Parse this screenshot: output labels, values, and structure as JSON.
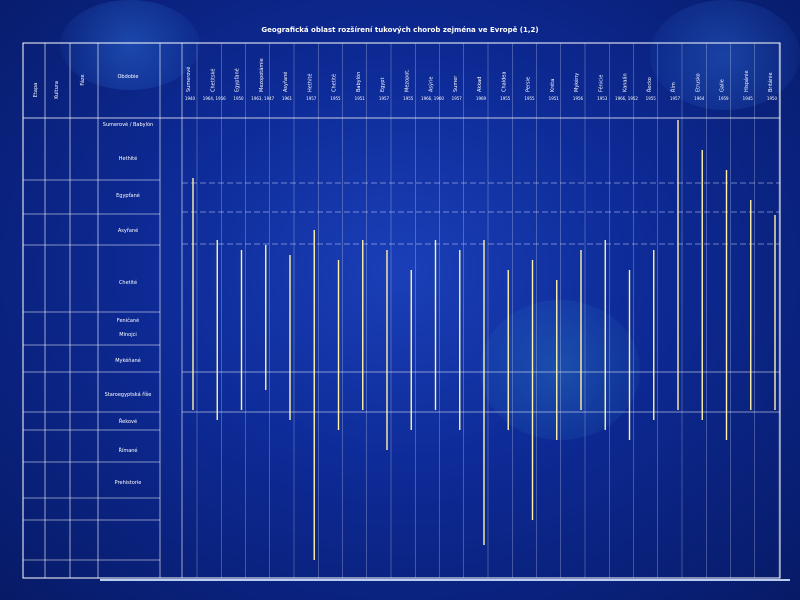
{
  "colors": {
    "background": "#0d2a95",
    "line": "#ffffff",
    "bar": "#fff3a8",
    "dashed": "#cfd8ff"
  },
  "chart_data": {
    "type": "table",
    "title": "Geografická oblast rozšírení tukových chorob zejména ve Evropě (1,2)",
    "header": [
      "Etapa",
      "Kultura",
      "Fáze",
      "Obdobie"
    ],
    "stratigraphy": [
      {
        "label": "Sumerové / Babylón"
      },
      {
        "label": "Hethité"
      },
      {
        "label": "Egypťané"
      },
      {
        "label": "Asyřané"
      },
      {
        "label": "Chetité"
      },
      {
        "label": "Feničané"
      },
      {
        "label": "Minojci"
      },
      {
        "label": "Mykéňané"
      },
      {
        "label": "Staroegyptská říše"
      },
      {
        "label": "Řekové"
      },
      {
        "label": "Římané"
      },
      {
        "label": "Prehistorie"
      }
    ],
    "columns": [
      {
        "label": "Sumerové",
        "year": "1940"
      },
      {
        "label": "Chetitské",
        "year": "1964, 1956"
      },
      {
        "label": "Egypťané",
        "year": "1950"
      },
      {
        "label": "Mezopotámie",
        "year": "1963, 1947"
      },
      {
        "label": "Asyřané",
        "year": "1961"
      },
      {
        "label": "Hethité",
        "year": "1957"
      },
      {
        "label": "Chetité",
        "year": "1955"
      },
      {
        "label": "Babylón",
        "year": "1951"
      },
      {
        "label": "Egypt",
        "year": "1957"
      },
      {
        "label": "Mezopot.",
        "year": "1955"
      },
      {
        "label": "Asýrie",
        "year": "1966, 1960"
      },
      {
        "label": "Sumer",
        "year": "1957"
      },
      {
        "label": "Akkad",
        "year": "1969"
      },
      {
        "label": "Chaldea",
        "year": "1955"
      },
      {
        "label": "Persie",
        "year": "1955"
      },
      {
        "label": "Kréta",
        "year": "1951"
      },
      {
        "label": "Mykény",
        "year": "1956"
      },
      {
        "label": "Fénicie",
        "year": "1953"
      },
      {
        "label": "Kanaán",
        "year": "1966, 1952"
      },
      {
        "label": "Řecko",
        "year": "1955"
      },
      {
        "label": "Řím",
        "year": "1957"
      },
      {
        "label": "Etrusko",
        "year": "1964"
      },
      {
        "label": "Galie",
        "year": "1959"
      },
      {
        "label": "Hispánie",
        "year": "1945"
      },
      {
        "label": "Británie",
        "year": "1950"
      }
    ]
  }
}
